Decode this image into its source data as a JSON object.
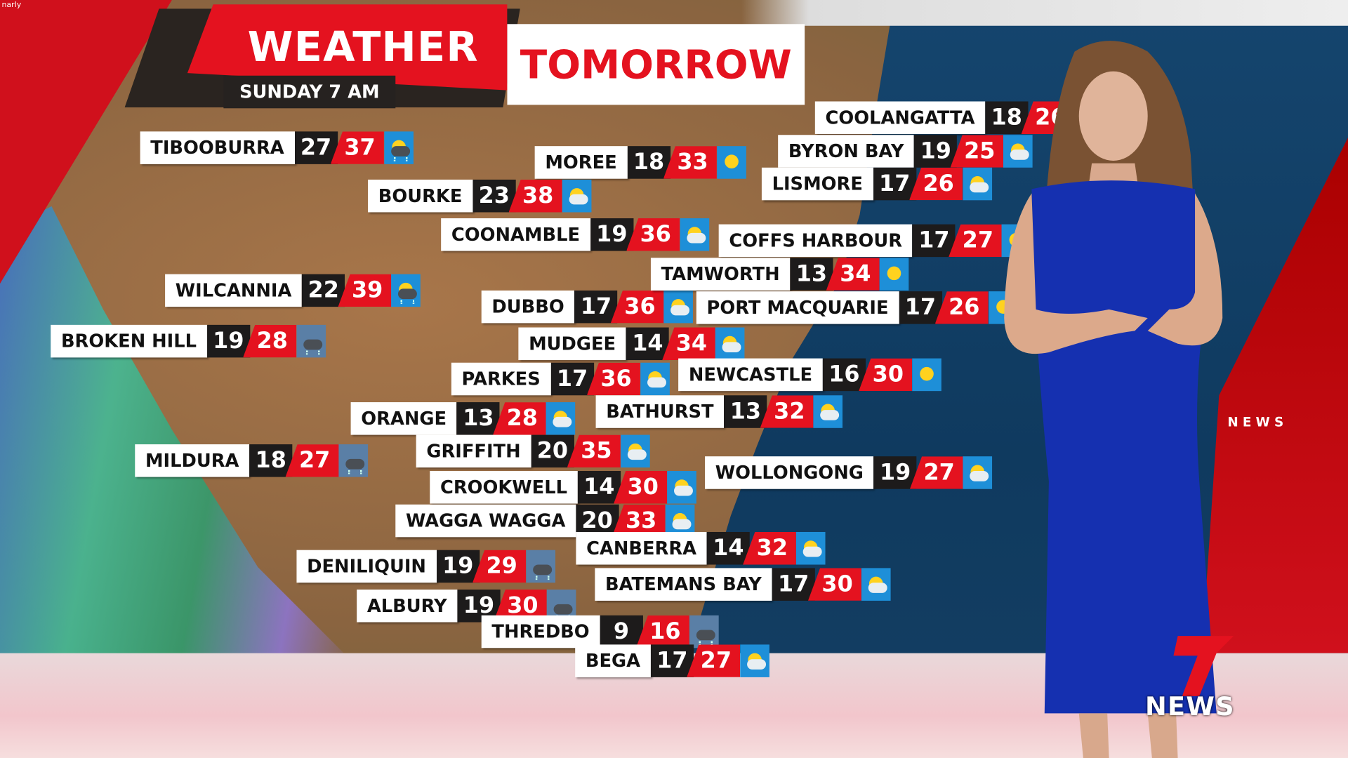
{
  "watermark": "narly",
  "title": {
    "main": "WEATHER",
    "accent": "TOMORROW",
    "subtitle": "SUNDAY 7 AM"
  },
  "side_label": "NEWS",
  "logo": {
    "number": "7",
    "text": "NEWS"
  },
  "colors": {
    "red": "#e4121f",
    "black": "#1d1b1b",
    "icon_bg": "#1e8fd8",
    "sea": "#0f3a5f",
    "dress": "#1530b0"
  },
  "cities": [
    {
      "name": "TIBOOBURRA",
      "min": "27",
      "max": "37",
      "icon": "storm"
    },
    {
      "name": "MOREE",
      "min": "18",
      "max": "33",
      "icon": "sunny"
    },
    {
      "name": "BOURKE",
      "min": "23",
      "max": "38",
      "icon": "partly-cloudy"
    },
    {
      "name": "COONAMBLE",
      "min": "19",
      "max": "36",
      "icon": "partly-cloudy"
    },
    {
      "name": "WILCANNIA",
      "min": "22",
      "max": "39",
      "icon": "storm"
    },
    {
      "name": "BROKEN HILL",
      "min": "19",
      "max": "28",
      "icon": "showers"
    },
    {
      "name": "DUBBO",
      "min": "17",
      "max": "36",
      "icon": "partly-cloudy"
    },
    {
      "name": "MUDGEE",
      "min": "14",
      "max": "34",
      "icon": "partly-cloudy"
    },
    {
      "name": "PARKES",
      "min": "17",
      "max": "36",
      "icon": "partly-cloudy"
    },
    {
      "name": "ORANGE",
      "min": "13",
      "max": "28",
      "icon": "partly-cloudy"
    },
    {
      "name": "MILDURA",
      "min": "18",
      "max": "27",
      "icon": "showers"
    },
    {
      "name": "GRIFFITH",
      "min": "20",
      "max": "35",
      "icon": "partly-cloudy"
    },
    {
      "name": "CROOKWELL",
      "min": "14",
      "max": "30",
      "icon": "partly-cloudy"
    },
    {
      "name": "WAGGA WAGGA",
      "min": "20",
      "max": "33",
      "icon": "partly-cloudy"
    },
    {
      "name": "DENILIQUIN",
      "min": "19",
      "max": "29",
      "icon": "showers"
    },
    {
      "name": "ALBURY",
      "min": "19",
      "max": "30",
      "icon": "showers"
    },
    {
      "name": "THREDBO",
      "min": "9",
      "max": "16",
      "icon": "showers"
    },
    {
      "name": "BEGA",
      "min": "17",
      "max": "27",
      "icon": "partly-cloudy"
    },
    {
      "name": "COOLANGATTA",
      "min": "18",
      "max": "26",
      "icon": "sunny"
    },
    {
      "name": "BYRON BAY",
      "min": "19",
      "max": "25",
      "icon": "partly-cloudy"
    },
    {
      "name": "LISMORE",
      "min": "17",
      "max": "26",
      "icon": "partly-cloudy"
    },
    {
      "name": "COFFS HARBOUR",
      "min": "17",
      "max": "27",
      "icon": "sunny"
    },
    {
      "name": "TAMWORTH",
      "min": "13",
      "max": "34",
      "icon": "sunny"
    },
    {
      "name": "PORT MACQUARIE",
      "min": "17",
      "max": "26",
      "icon": "sunny"
    },
    {
      "name": "NEWCASTLE",
      "min": "16",
      "max": "30",
      "icon": "sunny"
    },
    {
      "name": "BATHURST",
      "min": "13",
      "max": "32",
      "icon": "partly-cloudy"
    },
    {
      "name": "WOLLONGONG",
      "min": "19",
      "max": "27",
      "icon": "partly-cloudy"
    },
    {
      "name": "CANBERRA",
      "min": "14",
      "max": "32",
      "icon": "partly-cloudy"
    },
    {
      "name": "BATEMANS BAY",
      "min": "17",
      "max": "30",
      "icon": "partly-cloudy"
    }
  ]
}
